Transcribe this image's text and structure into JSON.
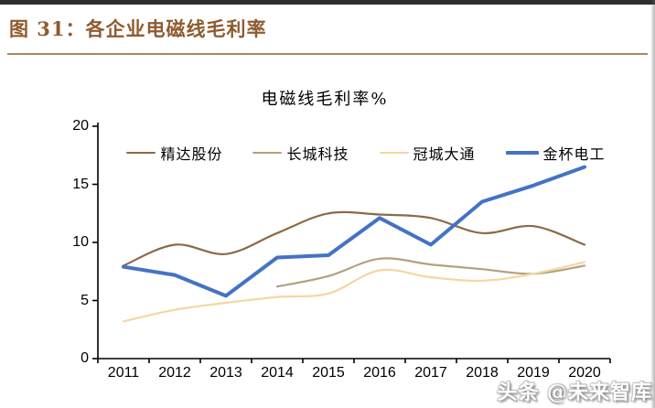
{
  "page": {
    "figure_label": "图 31：各企业电磁线毛利率",
    "watermark": "头条 @未来智库"
  },
  "colors": {
    "figure_title": "#8E5B2F",
    "divider_rule": "#A8875D",
    "top_bar": "#2E2E2E",
    "axis": "#000000"
  },
  "chart_data": {
    "type": "line",
    "title": "电磁线毛利率%",
    "categories": [
      "2011",
      "2012",
      "2013",
      "2014",
      "2015",
      "2016",
      "2017",
      "2018",
      "2019",
      "2020"
    ],
    "ylim": [
      0,
      20
    ],
    "yticks": [
      0,
      5,
      10,
      15,
      20
    ],
    "grid": false,
    "legend_position": "top",
    "series": [
      {
        "name": "精达股份",
        "color": "#8C6A45",
        "stroke_width": 2.2,
        "smooth": true,
        "values": [
          8.0,
          9.8,
          9.0,
          10.8,
          12.5,
          12.4,
          12.1,
          10.8,
          11.4,
          9.8
        ]
      },
      {
        "name": "长城科技",
        "color": "#B3A181",
        "stroke_width": 2.2,
        "smooth": true,
        "values": [
          null,
          null,
          null,
          6.2,
          7.1,
          8.6,
          8.1,
          7.7,
          7.3,
          8.0
        ]
      },
      {
        "name": "冠城大通",
        "color": "#F2D7A2",
        "stroke_width": 2.2,
        "smooth": true,
        "values": [
          3.2,
          4.2,
          4.8,
          5.3,
          5.6,
          7.6,
          7.0,
          6.7,
          7.3,
          8.3
        ]
      },
      {
        "name": "金杯电工",
        "color": "#4472C4",
        "stroke_width": 4,
        "smooth": false,
        "values": [
          7.9,
          7.2,
          5.4,
          8.7,
          8.9,
          12.1,
          9.8,
          13.5,
          14.9,
          16.5
        ]
      }
    ]
  }
}
